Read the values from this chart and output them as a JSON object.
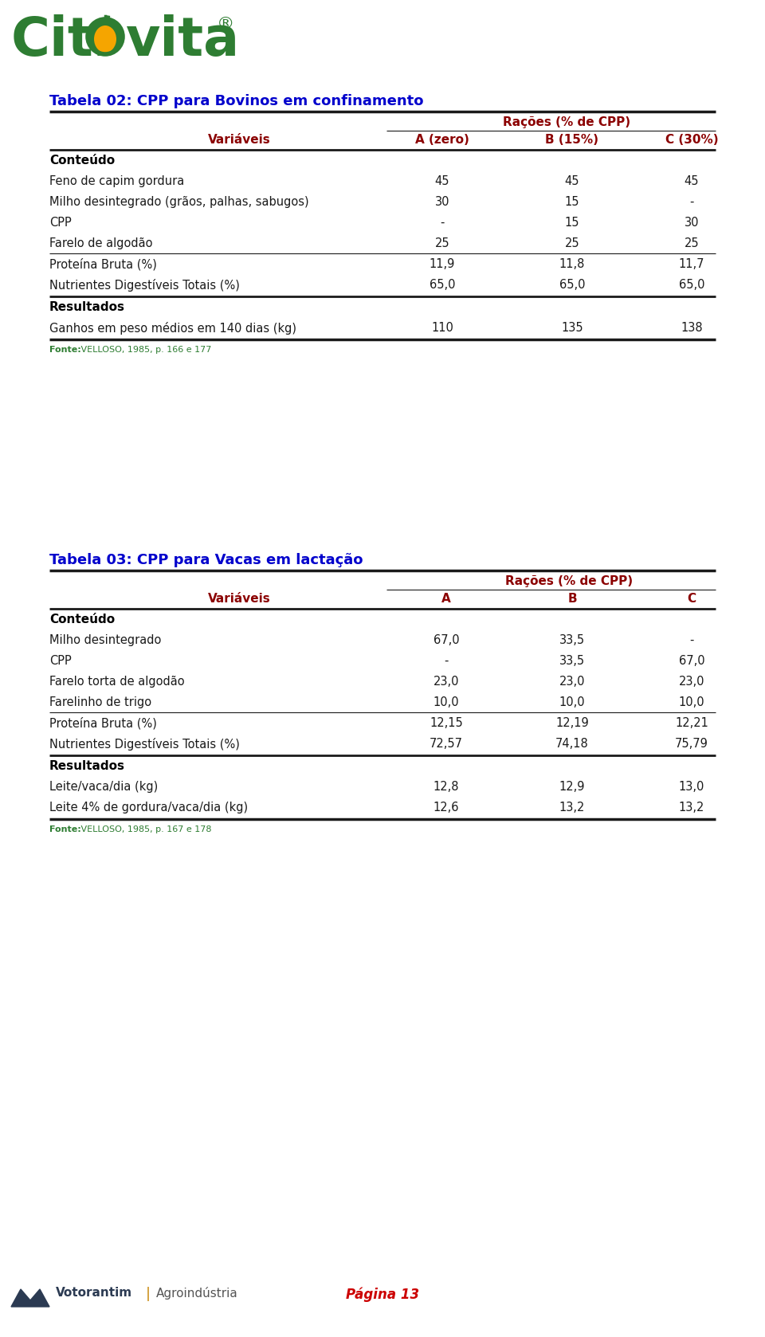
{
  "page_bg": "#ffffff",
  "page_number": "Página 13",
  "page_number_color": "#cc0000",
  "table1_title": "Tabela 02: CPP para Bovinos em confinamento",
  "table1_title_color": "#0000cc",
  "table1_header_row1": "Rações (% de CPP)",
  "table1_header_row2": [
    "Variáveis",
    "A (zero)",
    "B (15%)",
    "C (30%)"
  ],
  "table1_header_color": "#8b0000",
  "table1_section1_label": "Conteúdo",
  "table1_rows_content": [
    [
      "Feno de capim gordura",
      "45",
      "45",
      "45"
    ],
    [
      "Milho desintegrado (grãos, palhas, sabugos)",
      "30",
      "15",
      "-"
    ],
    [
      "CPP",
      "-",
      "15",
      "30"
    ],
    [
      "Farelo de algodão",
      "25",
      "25",
      "25"
    ]
  ],
  "table1_rows_protein": [
    "Proteína Bruta (%)",
    "11,9",
    "11,8",
    "11,7"
  ],
  "table1_rows_ndt": [
    "Nutrientes Digestíveis Totais (%)",
    "65,0",
    "65,0",
    "65,0"
  ],
  "table1_section2_label": "Resultados",
  "table1_rows_ganhos": [
    "Ganhos em peso médios em 140 dias (kg)",
    "110",
    "135",
    "138"
  ],
  "table1_fonte_label": "Fonte:",
  "table1_fonte_rest": " VELLOSO, 1985, p. 166 e 177",
  "table2_title": "Tabela 03: CPP para Vacas em lactação",
  "table2_title_color": "#0000cc",
  "table2_header_row1": "Rações (% de CPP)",
  "table2_header_row2": [
    "Variáveis",
    "A",
    "B",
    "C"
  ],
  "table2_header_color": "#8b0000",
  "table2_section1_label": "Conteúdo",
  "table2_rows_content": [
    [
      "Milho desintegrado",
      "67,0",
      "33,5",
      "-"
    ],
    [
      "CPP",
      "-",
      "33,5",
      "67,0"
    ],
    [
      "Farelo torta de algodão",
      "23,0",
      "23,0",
      "23,0"
    ],
    [
      "Farelinho de trigo",
      "10,0",
      "10,0",
      "10,0"
    ]
  ],
  "table2_rows_protein": [
    "Proteína Bruta (%)",
    "12,15",
    "12,19",
    "12,21"
  ],
  "table2_rows_ndt": [
    "Nutrientes Digestíveis Totais (%)",
    "72,57",
    "74,18",
    "75,79"
  ],
  "table2_section2_label": "Resultados",
  "table2_rows_leite": [
    "Leite/vaca/dia (kg)",
    "12,8",
    "12,9",
    "13,0"
  ],
  "table2_rows_leite4": [
    "Leite 4% de gordura/vaca/dia (kg)",
    "12,6",
    "13,2",
    "13,2"
  ],
  "table2_fonte_label": "Fonte:",
  "table2_fonte_rest": " VELLOSO, 1985, p. 167 e 178",
  "logo_green": "#2e7d32",
  "logo_orange": "#f5a500",
  "dark_color": "#1a1a1a",
  "votorantim_color": "#2b3a52",
  "votorantim_sep_color": "#c8880a"
}
